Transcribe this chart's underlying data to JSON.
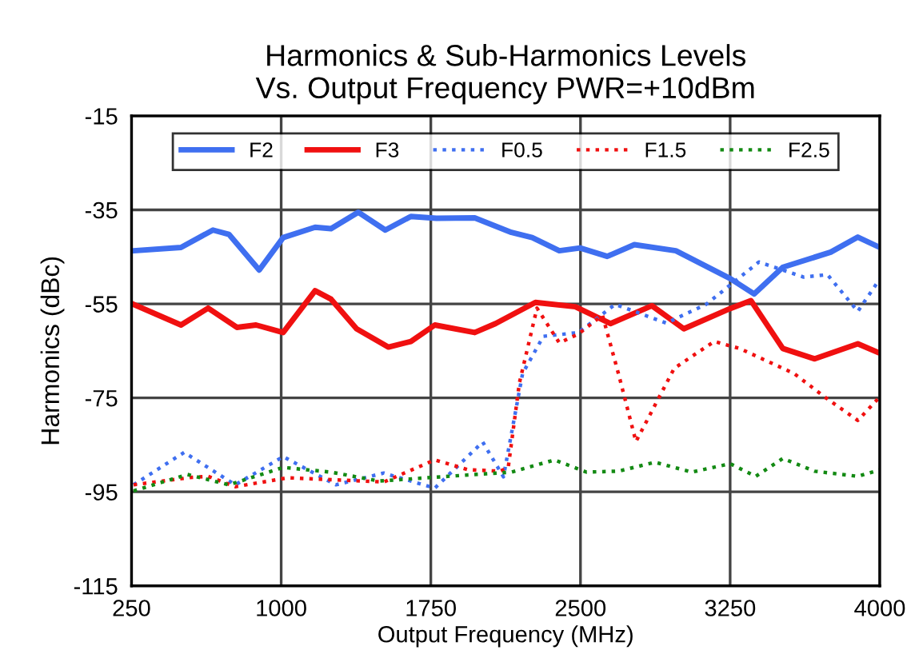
{
  "chart_data": {
    "type": "line",
    "title": "Harmonics & Sub-Harmonics Levels\nVs. Output Frequency PWR=+10dBm",
    "xlabel": "Output Frequency (MHz)",
    "ylabel": "Harmonics (dBc)",
    "xlim": [
      250,
      4000
    ],
    "xticks": [
      250,
      1000,
      1750,
      2500,
      3250,
      4000
    ],
    "ylim": [
      -115,
      -15
    ],
    "yticks": [
      -115,
      -95,
      -75,
      -55,
      -35,
      -15
    ],
    "grid": true,
    "legend": "top",
    "marker": "none",
    "series": [
      {
        "name": "F2",
        "color": "#3f6ff0",
        "line_style": "solid",
        "x": [
          260,
          498,
          658,
          738,
          890,
          1010,
          1170,
          1250,
          1386,
          1522,
          1650,
          1778,
          1970,
          2154,
          2258,
          2394,
          2498,
          2634,
          2770,
          2978,
          3250,
          3370,
          3514,
          3754,
          3890,
          4000
        ],
        "values": [
          -43.7,
          -43.0,
          -39.3,
          -40.2,
          -47.8,
          -40.9,
          -38.7,
          -39.0,
          -35.5,
          -39.3,
          -36.4,
          -36.8,
          -36.7,
          -39.8,
          -40.9,
          -43.7,
          -43.1,
          -44.9,
          -42.4,
          -43.7,
          -49.6,
          -52.9,
          -47.2,
          -44.0,
          -40.8,
          -43.0
        ]
      },
      {
        "name": "F3",
        "color": "#f01010",
        "line_style": "solid",
        "x": [
          260,
          498,
          634,
          778,
          874,
          1010,
          1170,
          1250,
          1378,
          1538,
          1650,
          1770,
          1970,
          2074,
          2274,
          2474,
          2650,
          2858,
          3018,
          3250,
          3354,
          3514,
          3674,
          3890,
          4000
        ],
        "values": [
          -55.1,
          -59.5,
          -55.9,
          -60.0,
          -59.5,
          -61.1,
          -52.2,
          -54.0,
          -60.3,
          -64.2,
          -63.0,
          -59.5,
          -61.1,
          -59.2,
          -54.7,
          -55.6,
          -59.2,
          -55.4,
          -60.3,
          -56.0,
          -54.3,
          -64.5,
          -66.7,
          -63.5,
          -65.5
        ]
      },
      {
        "name": "F0.5",
        "color": "#3f6ff0",
        "line_style": "dotted",
        "x": [
          260,
          514,
          770,
          1010,
          1274,
          1514,
          1770,
          2010,
          2114,
          2210,
          2314,
          2490,
          2674,
          2930,
          3130,
          3394,
          3618,
          3738,
          3890,
          4000
        ],
        "values": [
          -93.5,
          -86.6,
          -93.5,
          -87.5,
          -93.5,
          -91.0,
          -94.2,
          -84.4,
          -91.8,
          -69.8,
          -61.9,
          -61.1,
          -55.1,
          -59.1,
          -55.1,
          -46.1,
          -49.3,
          -48.8,
          -56.6,
          -49.7
        ]
      },
      {
        "name": "F1.5",
        "color": "#f01010",
        "line_style": "dotted",
        "x": [
          260,
          554,
          634,
          770,
          1034,
          1514,
          1770,
          1938,
          2098,
          2138,
          2194,
          2282,
          2394,
          2490,
          2610,
          2690,
          2778,
          2970,
          3170,
          3298,
          3570,
          3730,
          3890,
          4000
        ],
        "values": [
          -93.5,
          -91.9,
          -91.7,
          -93.9,
          -92.0,
          -92.9,
          -88.2,
          -90.3,
          -90.6,
          -89.8,
          -71.8,
          -55.9,
          -63.3,
          -61.4,
          -57.4,
          -69.8,
          -84.3,
          -68.7,
          -63.0,
          -64.5,
          -69.8,
          -75.0,
          -79.8,
          -74.8
        ]
      },
      {
        "name": "F2.5",
        "color": "#138a13",
        "line_style": "dotted",
        "x": [
          260,
          530,
          738,
          1010,
          1250,
          1490,
          1834,
          2154,
          2370,
          2530,
          2690,
          2874,
          3058,
          3250,
          3378,
          3514,
          3674,
          3890,
          4000
        ],
        "values": [
          -94.8,
          -91.3,
          -93.5,
          -89.8,
          -90.8,
          -92.7,
          -91.7,
          -90.8,
          -88.2,
          -90.8,
          -90.6,
          -88.7,
          -90.8,
          -89.0,
          -91.7,
          -87.9,
          -90.6,
          -91.7,
          -90.3
        ]
      }
    ]
  }
}
